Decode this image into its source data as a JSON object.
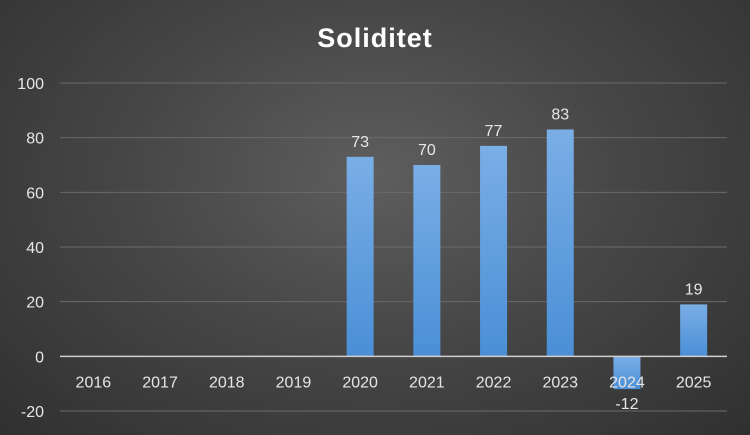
{
  "chart_data": {
    "type": "bar",
    "title": "Soliditet",
    "xlabel": "",
    "ylabel": "",
    "categories": [
      "2016",
      "2017",
      "2018",
      "2019",
      "2020",
      "2021",
      "2022",
      "2023",
      "2024",
      "2025"
    ],
    "values": [
      null,
      null,
      null,
      null,
      73,
      70,
      77,
      83,
      -12,
      19
    ],
    "data_labels": [
      "",
      "",
      "",
      "",
      "73",
      "70",
      "77",
      "83",
      "-12",
      "19"
    ],
    "ylim": [
      -20,
      100
    ],
    "yticks": [
      -20,
      0,
      20,
      40,
      60,
      80,
      100
    ],
    "ytick_labels": [
      "-20",
      "0",
      "20",
      "40",
      "60",
      "80",
      "100"
    ],
    "grid": true,
    "legend": "none",
    "bar_color": "#4a8fd6",
    "bar_color_light": "#7aaee6",
    "gridline_color": "#6a6a6a",
    "axis_color": "#cfcfcf"
  }
}
